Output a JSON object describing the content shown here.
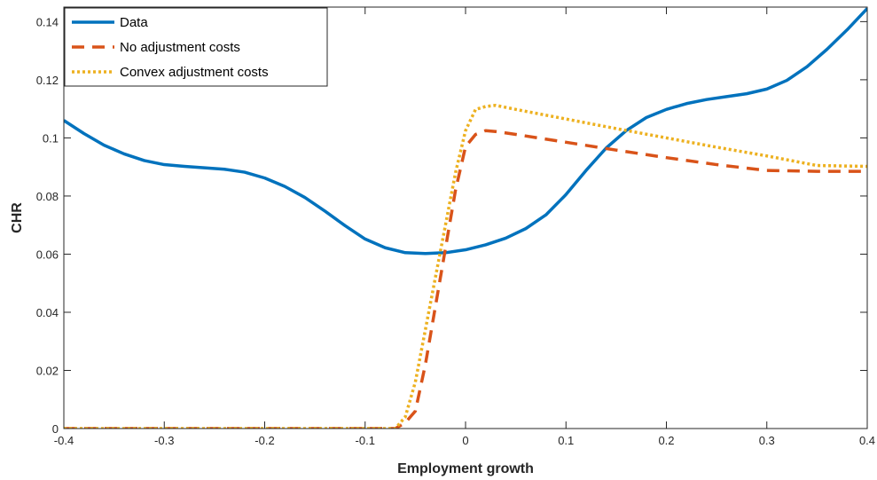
{
  "chart_data": {
    "type": "line",
    "xlabel": "Employment growth",
    "ylabel": "CHR",
    "xlim": [
      -0.4,
      0.4
    ],
    "ylim": [
      0,
      0.145
    ],
    "xticks": [
      -0.4,
      -0.3,
      -0.2,
      -0.1,
      0,
      0.1,
      0.2,
      0.3,
      0.4
    ],
    "xtick_labels": [
      "-0.4",
      "-0.3",
      "-0.2",
      "-0.1",
      "0",
      "0.1",
      "0.2",
      "0.3",
      "0.4"
    ],
    "yticks": [
      0,
      0.02,
      0.04,
      0.06,
      0.08,
      0.1,
      0.12,
      0.14
    ],
    "ytick_labels": [
      "0",
      "0.02",
      "0.04",
      "0.06",
      "0.08",
      "0.1",
      "0.12",
      "0.14"
    ],
    "grid": false,
    "legend_position": "top-left",
    "series": [
      {
        "name": "Data",
        "color": "#0072BD",
        "style": "solid",
        "x": [
          -0.4,
          -0.38,
          -0.36,
          -0.34,
          -0.32,
          -0.3,
          -0.28,
          -0.26,
          -0.24,
          -0.22,
          -0.2,
          -0.18,
          -0.16,
          -0.14,
          -0.12,
          -0.1,
          -0.08,
          -0.06,
          -0.04,
          -0.02,
          0.0,
          0.02,
          0.04,
          0.06,
          0.08,
          0.1,
          0.12,
          0.14,
          0.16,
          0.18,
          0.2,
          0.22,
          0.24,
          0.26,
          0.28,
          0.3,
          0.32,
          0.34,
          0.36,
          0.38,
          0.4
        ],
        "y": [
          0.106,
          0.1015,
          0.0975,
          0.0945,
          0.0922,
          0.0908,
          0.0902,
          0.0897,
          0.0892,
          0.0882,
          0.0862,
          0.0833,
          0.0795,
          0.0748,
          0.0698,
          0.0652,
          0.0622,
          0.0605,
          0.0602,
          0.0605,
          0.0615,
          0.0632,
          0.0655,
          0.0688,
          0.0735,
          0.0805,
          0.0888,
          0.0965,
          0.1025,
          0.107,
          0.1098,
          0.1118,
          0.1132,
          0.1142,
          0.1152,
          0.1168,
          0.1198,
          0.1245,
          0.1305,
          0.1372,
          0.1445
        ]
      },
      {
        "name": "No adjustment costs",
        "color": "#D95319",
        "style": "dashed",
        "x": [
          -0.4,
          -0.2,
          -0.1,
          -0.07,
          -0.06,
          -0.05,
          -0.04,
          -0.03,
          -0.02,
          -0.01,
          0.0,
          0.01,
          0.02,
          0.03,
          0.05,
          0.1,
          0.15,
          0.2,
          0.25,
          0.3,
          0.35,
          0.4
        ],
        "y": [
          0,
          0,
          0,
          0,
          0.002,
          0.006,
          0.022,
          0.042,
          0.062,
          0.082,
          0.097,
          0.1012,
          0.1025,
          0.1022,
          0.1012,
          0.0985,
          0.0958,
          0.0932,
          0.0908,
          0.0888,
          0.0885,
          0.0885
        ]
      },
      {
        "name": "Convex adjustment costs",
        "color": "#EDB120",
        "style": "dotted",
        "x": [
          -0.4,
          -0.2,
          -0.1,
          -0.07,
          -0.06,
          -0.05,
          -0.04,
          -0.03,
          -0.02,
          -0.01,
          0.0,
          0.01,
          0.02,
          0.03,
          0.05,
          0.1,
          0.15,
          0.2,
          0.25,
          0.3,
          0.35,
          0.4
        ],
        "y": [
          0,
          0,
          0,
          0,
          0.004,
          0.016,
          0.034,
          0.052,
          0.07,
          0.088,
          0.1025,
          0.1098,
          0.1108,
          0.1112,
          0.1098,
          0.1065,
          0.1032,
          0.1,
          0.0968,
          0.0938,
          0.0905,
          0.0902
        ]
      }
    ]
  }
}
